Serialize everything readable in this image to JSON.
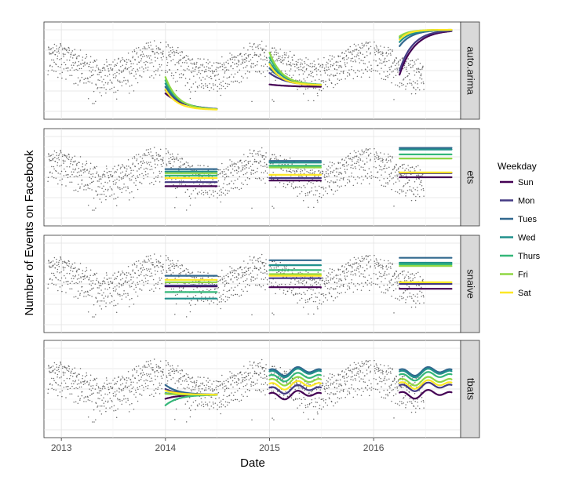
{
  "chart_data": {
    "type": "line",
    "xlabel": "Date",
    "ylabel": "Number of Events on Facebook",
    "x_ticks": [
      "2013",
      "2014",
      "2015",
      "2016"
    ],
    "xlim": [
      "2012-11-01",
      "2016-11-01"
    ],
    "grid": true,
    "legend": {
      "title": "Weekday",
      "placement": "right",
      "entries": [
        {
          "name": "Sun",
          "color": "#440154"
        },
        {
          "name": "Mon",
          "color": "#443A83"
        },
        {
          "name": "Tues",
          "color": "#31688E"
        },
        {
          "name": "Wed",
          "color": "#21908C"
        },
        {
          "name": "Thurs",
          "color": "#35B779"
        },
        {
          "name": "Fri",
          "color": "#8FD744"
        },
        {
          "name": "Sat",
          "color": "#FDE725"
        }
      ]
    },
    "observed_color": "#555555",
    "observed_segments": [
      [
        "2012-11-15",
        "2013-12-25"
      ],
      [
        "2014-01-01",
        "2014-12-25"
      ],
      [
        "2015-01-01",
        "2015-12-25"
      ],
      [
        "2016-01-01",
        "2016-06-25"
      ]
    ],
    "panels": [
      {
        "label": "auto.arima",
        "forecasts": [
          {
            "start": "2014-01-01",
            "end": "2014-06-30",
            "shape": "decay",
            "from": [
              0.22,
              0.26,
              0.3,
              0.34,
              0.38,
              0.42,
              0.27
            ],
            "to": [
              0.015,
              0.015,
              0.016,
              0.017,
              0.018,
              0.019,
              0.02
            ]
          },
          {
            "start": "2015-01-01",
            "end": "2015-06-30",
            "shape": "decay",
            "from": [
              0.33,
              0.47,
              0.53,
              0.6,
              0.66,
              0.72,
              0.58
            ],
            "to": [
              0.3,
              0.31,
              0.31,
              0.32,
              0.32,
              0.32,
              0.32
            ]
          },
          {
            "start": "2016-04-01",
            "end": "2016-09-30",
            "shape": "rise",
            "from": [
              0.45,
              0.5,
              0.8,
              0.85,
              0.9,
              0.92,
              0.88
            ],
            "to": [
              1.0,
              1.0,
              1.0,
              1.0,
              1.0,
              1.0,
              1.0
            ]
          }
        ]
      },
      {
        "label": "ets",
        "forecasts": [
          {
            "start": "2014-01-01",
            "end": "2014-06-30",
            "shape": "flat",
            "values": [
              0.39,
              0.44,
              0.6,
              0.57,
              0.52,
              0.55,
              0.49
            ]
          },
          {
            "start": "2015-01-01",
            "end": "2015-06-30",
            "shape": "flat",
            "values": [
              0.46,
              0.49,
              0.7,
              0.68,
              0.64,
              0.62,
              0.53
            ]
          },
          {
            "start": "2016-04-01",
            "end": "2016-09-30",
            "shape": "flat",
            "values": [
              0.5,
              0.55,
              0.86,
              0.84,
              0.78,
              0.73,
              0.56
            ]
          }
        ]
      },
      {
        "label": "snaive",
        "forecasts": [
          {
            "start": "2014-01-01",
            "end": "2014-06-30",
            "shape": "flat",
            "values": [
              0.47,
              0.48,
              0.6,
              0.32,
              0.4,
              0.52,
              0.55
            ]
          },
          {
            "start": "2015-01-01",
            "end": "2015-06-30",
            "shape": "flat",
            "values": [
              0.46,
              0.57,
              0.79,
              0.73,
              0.67,
              0.62,
              0.6
            ]
          },
          {
            "start": "2016-04-01",
            "end": "2016-09-30",
            "shape": "flat",
            "values": [
              0.44,
              0.5,
              0.82,
              0.76,
              0.74,
              0.72,
              0.52
            ]
          }
        ]
      },
      {
        "label": "tbats",
        "forecasts": [
          {
            "start": "2014-01-01",
            "end": "2014-06-30",
            "shape": "converge",
            "from": [
              0.38,
              0.5,
              0.55,
              0.45,
              0.3,
              0.44,
              0.48
            ],
            "to": [
              0.43,
              0.43,
              0.43,
              0.43,
              0.43,
              0.43,
              0.43
            ]
          },
          {
            "start": "2015-01-01",
            "end": "2015-06-30",
            "shape": "wavy",
            "values": [
              0.43,
              0.5,
              0.72,
              0.7,
              0.65,
              0.6,
              0.55
            ]
          },
          {
            "start": "2016-04-01",
            "end": "2016-09-30",
            "shape": "wavy",
            "values": [
              0.44,
              0.53,
              0.72,
              0.7,
              0.66,
              0.6,
              0.56
            ]
          }
        ]
      }
    ]
  }
}
